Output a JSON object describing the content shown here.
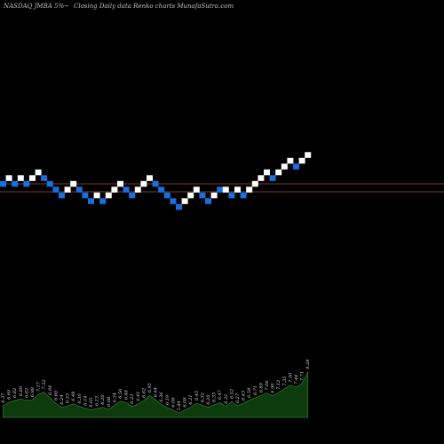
{
  "header": {
    "symbol": "NASDAQ JMBA 5%~",
    "chart_name": "Closing Daily data  Renko  charts MunafaSutra.com"
  },
  "colors": {
    "up_brick": "#ffffff",
    "down_brick": "#1a6ee0",
    "level_line": "#a0522d",
    "volume_fill": "#0d3b0d",
    "volume_line": "#2e7d32"
  },
  "chart_data": {
    "type": "renko",
    "bricks": [
      {
        "dir": "down",
        "level": 0
      },
      {
        "dir": "up",
        "level": 1
      },
      {
        "dir": "down",
        "level": 0
      },
      {
        "dir": "up",
        "level": 1
      },
      {
        "dir": "down",
        "level": 0
      },
      {
        "dir": "up",
        "level": 1
      },
      {
        "dir": "up",
        "level": 2
      },
      {
        "dir": "down",
        "level": 1
      },
      {
        "dir": "down",
        "level": 0
      },
      {
        "dir": "down",
        "level": -1
      },
      {
        "dir": "down",
        "level": -2
      },
      {
        "dir": "up",
        "level": -1
      },
      {
        "dir": "up",
        "level": 0
      },
      {
        "dir": "down",
        "level": -1
      },
      {
        "dir": "down",
        "level": -2
      },
      {
        "dir": "down",
        "level": -3
      },
      {
        "dir": "up",
        "level": -2
      },
      {
        "dir": "down",
        "level": -3
      },
      {
        "dir": "up",
        "level": -2
      },
      {
        "dir": "up",
        "level": -1
      },
      {
        "dir": "up",
        "level": 0
      },
      {
        "dir": "down",
        "level": -1
      },
      {
        "dir": "down",
        "level": -2
      },
      {
        "dir": "up",
        "level": -1
      },
      {
        "dir": "up",
        "level": 0
      },
      {
        "dir": "up",
        "level": 1
      },
      {
        "dir": "down",
        "level": 0
      },
      {
        "dir": "down",
        "level": -1
      },
      {
        "dir": "down",
        "level": -2
      },
      {
        "dir": "down",
        "level": -3
      },
      {
        "dir": "down",
        "level": -4
      },
      {
        "dir": "up",
        "level": -3
      },
      {
        "dir": "up",
        "level": -2
      },
      {
        "dir": "up",
        "level": -1
      },
      {
        "dir": "down",
        "level": -2
      },
      {
        "dir": "down",
        "level": -3
      },
      {
        "dir": "up",
        "level": -2
      },
      {
        "dir": "down",
        "level": -1
      },
      {
        "dir": "up",
        "level": -1
      },
      {
        "dir": "down",
        "level": -2
      },
      {
        "dir": "up",
        "level": -1
      },
      {
        "dir": "down",
        "level": -2
      },
      {
        "dir": "up",
        "level": -1
      },
      {
        "dir": "up",
        "level": 0
      },
      {
        "dir": "up",
        "level": 1
      },
      {
        "dir": "up",
        "level": 2
      },
      {
        "dir": "down",
        "level": 1
      },
      {
        "dir": "up",
        "level": 2
      },
      {
        "dir": "up",
        "level": 3
      },
      {
        "dir": "up",
        "level": 4
      },
      {
        "dir": "down",
        "level": 3
      },
      {
        "dir": "up",
        "level": 4
      },
      {
        "dir": "up",
        "level": 5
      }
    ],
    "volume_labels": [
      "6.37",
      "6.69",
      "6.82",
      "6.89",
      "6.82",
      "6.88",
      "7.17",
      "7.32",
      "6.94",
      "6.60",
      "6.24",
      "6.33",
      "6.48",
      "6.30",
      "6.14",
      "6.05",
      "6.13",
      "6.20",
      "6.08",
      "6.34",
      "6.56",
      "6.48",
      "6.23",
      "6.41",
      "6.62",
      "6.95",
      "6.64",
      "6.36",
      "6.19",
      "6.06",
      "5.84",
      "6.08",
      "6.21",
      "6.45",
      "6.32",
      "6.20",
      "6.33",
      "6.47",
      "6.22",
      "6.52",
      "6.27",
      "6.43",
      "6.58",
      "6.71",
      "6.89",
      "7.06",
      "6.90",
      "7.12",
      "7.35",
      "7.50",
      "7.44",
      "7.71",
      "8.28"
    ],
    "volumes": [
      0.35,
      0.45,
      0.5,
      0.55,
      0.5,
      0.52,
      0.68,
      0.75,
      0.58,
      0.42,
      0.3,
      0.34,
      0.4,
      0.33,
      0.27,
      0.22,
      0.26,
      0.3,
      0.24,
      0.36,
      0.48,
      0.44,
      0.32,
      0.4,
      0.5,
      0.65,
      0.52,
      0.38,
      0.29,
      0.22,
      0.12,
      0.22,
      0.3,
      0.42,
      0.36,
      0.3,
      0.37,
      0.44,
      0.32,
      0.47,
      0.34,
      0.42,
      0.5,
      0.58,
      0.65,
      0.72,
      0.64,
      0.74,
      0.85,
      0.95,
      0.9,
      1.0,
      1.35
    ],
    "reference_levels": [
      0,
      -1
    ]
  }
}
